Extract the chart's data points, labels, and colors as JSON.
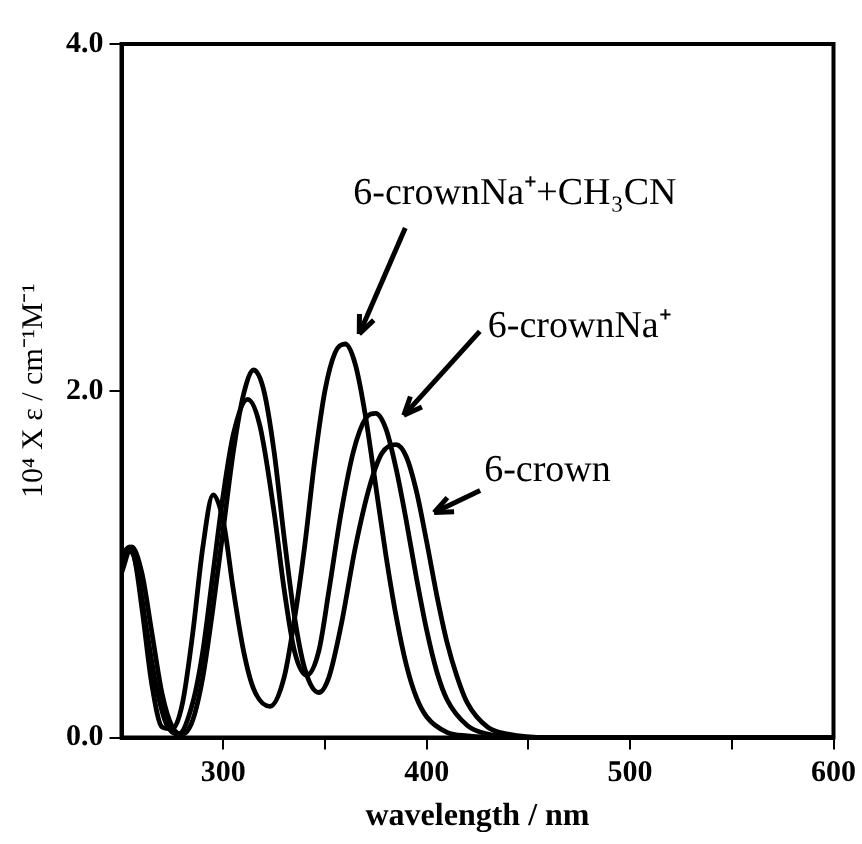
{
  "chart_data": {
    "type": "line",
    "xlabel": "wavelength / nm",
    "ylabel": "10⁴ X ε / cm⁻¹M⁻¹",
    "xlim": [
      250,
      600
    ],
    "xticks": [
      300,
      {
        "value": 350,
        "label": null
      },
      400,
      {
        "value": 450,
        "label": null
      },
      500,
      {
        "value": 550,
        "label": null
      },
      600
    ],
    "ylim": [
      0,
      4
    ],
    "yticks": [
      {
        "value": 0,
        "label": "0.0"
      },
      {
        "value": 2,
        "label": "2.0"
      },
      {
        "value": 4,
        "label": "4.0"
      }
    ],
    "grid": false,
    "legend": false,
    "marker": "none",
    "line_style": "solid",
    "series": [
      {
        "name": "6-crownNa⁺+CH₃CN",
        "color": "#000000",
        "x": [
          250,
          253,
          256,
          260,
          265,
          270,
          275,
          280,
          285,
          290,
          295,
          300,
          305,
          310,
          315,
          323,
          330,
          335,
          340,
          345,
          350,
          355,
          360,
          365,
          370,
          375,
          380,
          385,
          390,
          395,
          400,
          410,
          420,
          440,
          600
        ],
        "values": [
          1.0,
          1.08,
          1.05,
          0.75,
          0.3,
          0.06,
          0.05,
          0.2,
          0.6,
          1.1,
          1.4,
          1.25,
          0.85,
          0.5,
          0.28,
          0.18,
          0.35,
          0.68,
          1.1,
          1.6,
          2.0,
          2.22,
          2.27,
          2.15,
          1.85,
          1.45,
          1.05,
          0.7,
          0.42,
          0.23,
          0.12,
          0.03,
          0.01,
          0,
          0
        ]
      },
      {
        "name": "6-crownNa⁺",
        "color": "#000000",
        "x": [
          250,
          254,
          258,
          262,
          267,
          272,
          278,
          285,
          290,
          295,
          300,
          305,
          312,
          318,
          325,
          330,
          335,
          341,
          347,
          352,
          358,
          364,
          370,
          375,
          380,
          385,
          390,
          395,
          400,
          405,
          410,
          420,
          430,
          450,
          600
        ],
        "values": [
          1.05,
          1.1,
          0.95,
          0.65,
          0.3,
          0.08,
          0.02,
          0.2,
          0.5,
          0.95,
          1.4,
          1.75,
          1.95,
          1.8,
          1.3,
          0.85,
          0.5,
          0.36,
          0.5,
          0.85,
          1.3,
          1.65,
          1.84,
          1.87,
          1.78,
          1.55,
          1.25,
          0.92,
          0.62,
          0.38,
          0.22,
          0.07,
          0.02,
          0,
          0
        ]
      },
      {
        "name": "6-crown",
        "color": "#000000",
        "x": [
          250,
          255,
          260,
          265,
          270,
          275,
          280,
          285,
          290,
          295,
          300,
          305,
          310,
          315,
          320,
          325,
          330,
          335,
          340,
          347,
          352,
          358,
          365,
          372,
          378,
          385,
          390,
          395,
          400,
          405,
          410,
          415,
          420,
          430,
          440,
          460,
          600
        ],
        "values": [
          0.95,
          1.1,
          0.95,
          0.6,
          0.25,
          0.06,
          0.02,
          0.1,
          0.35,
          0.75,
          1.2,
          1.65,
          1.98,
          2.12,
          2.0,
          1.65,
          1.15,
          0.7,
          0.4,
          0.26,
          0.35,
          0.65,
          1.1,
          1.45,
          1.64,
          1.69,
          1.62,
          1.42,
          1.13,
          0.82,
          0.55,
          0.35,
          0.2,
          0.06,
          0.02,
          0,
          0
        ]
      }
    ]
  }
}
